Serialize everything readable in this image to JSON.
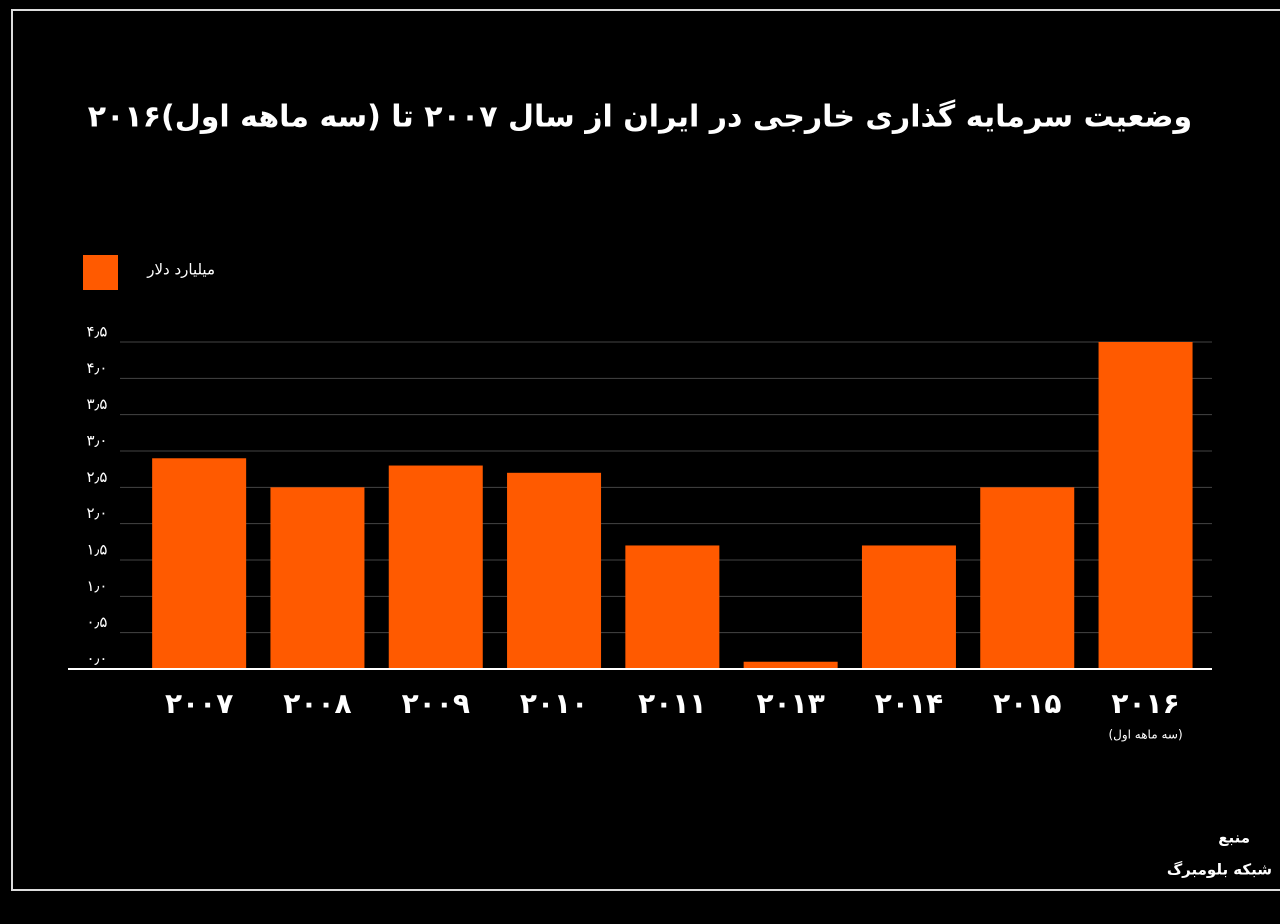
{
  "chart_data": {
    "type": "bar",
    "title": "وضعیت سرمایه گذاری خارجی در ایران از سال ۲۰۰۷ تا (سه ماهه اول)۲۰۱۶",
    "categories": [
      "۲۰۰۷",
      "۲۰۰۸",
      "۲۰۰۹",
      "۲۰۱۰",
      "۲۰۱۱",
      "۲۰۱۳",
      "۲۰۱۴",
      "۲۰۱۵",
      "۲۰۱۶"
    ],
    "category_note": "(سه ماهه اول)",
    "series": [
      {
        "name": "میلیارد دلار",
        "color": "#ff5a00",
        "values": [
          2.9,
          2.5,
          2.8,
          2.7,
          1.7,
          0.1,
          1.7,
          2.5,
          4.5
        ]
      }
    ],
    "ylim": [
      0,
      4.5
    ],
    "yticks": [
      {
        "value": 0,
        "label": "۰٫۰"
      },
      {
        "value": 0.5,
        "label": "۰٫۵"
      },
      {
        "value": 1,
        "label": "۱٫۰"
      },
      {
        "value": 1.5,
        "label": "۱٫۵"
      },
      {
        "value": 2,
        "label": "۲٫۰"
      },
      {
        "value": 2.5,
        "label": "۲٫۵"
      },
      {
        "value": 3,
        "label": "۳٫۰"
      },
      {
        "value": 3.5,
        "label": "۳٫۵"
      },
      {
        "value": 4,
        "label": "۴٫۰"
      },
      {
        "value": 4.5,
        "label": "۴٫۵"
      }
    ],
    "grid": true,
    "legend": "top-left",
    "source": [
      "منبع",
      "شبکه بلومبرگ"
    ]
  }
}
